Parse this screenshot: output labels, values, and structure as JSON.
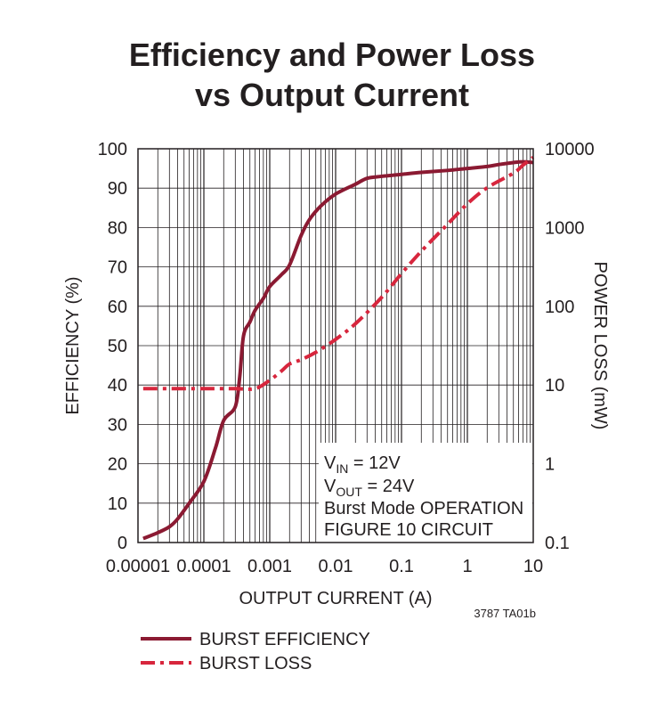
{
  "chart_data": {
    "type": "line",
    "title_line1": "Efficiency and Power Loss",
    "title_line2": "vs Output Current",
    "xlabel": "OUTPUT CURRENT (A)",
    "ylabel_left": "EFFICIENCY (%)",
    "ylabel_right": "POWER LOSS (mW)",
    "x_scale": "log",
    "xlim": [
      1e-05,
      10
    ],
    "ylim_left": [
      0,
      100
    ],
    "ylim_right": [
      0.1,
      10000
    ],
    "y_right_scale": "log",
    "x_ticks": [
      "0.00001",
      "0.0001",
      "0.001",
      "0.01",
      "0.1",
      "1",
      "10"
    ],
    "y_left_ticks": [
      "0",
      "10",
      "20",
      "30",
      "40",
      "50",
      "60",
      "70",
      "80",
      "90",
      "100"
    ],
    "y_right_ticks": [
      "0.1",
      "1",
      "10",
      "100",
      "1000",
      "10000"
    ],
    "grid": true,
    "annotation": {
      "vin_main": "V",
      "vin_sub": "IN",
      "vin_rest": " = 12V",
      "vout_main": "V",
      "vout_sub": "OUT",
      "vout_rest": " = 24V",
      "line3": "Burst Mode OPERATION",
      "line4": "FIGURE 10 CIRCUIT"
    },
    "figure_code": "3787 TA01b",
    "series": [
      {
        "name": "BURST EFFICIENCY",
        "axis": "left",
        "color": "#8b1a32",
        "style": "solid",
        "x": [
          1.2e-05,
          2e-05,
          3e-05,
          4e-05,
          6e-05,
          0.0001,
          0.00015,
          0.0002,
          0.0003,
          0.00035,
          0.0004,
          0.0005,
          0.0006,
          0.0008,
          0.001,
          0.0015,
          0.002,
          0.003,
          0.004,
          0.006,
          0.01,
          0.02,
          0.03,
          0.05,
          0.1,
          0.2,
          0.5,
          1,
          2,
          3,
          5,
          7,
          10
        ],
        "y": [
          1,
          2.5,
          4,
          6,
          10,
          15.5,
          24,
          31,
          34.5,
          42,
          52.5,
          56,
          59,
          62,
          65,
          68,
          70.5,
          78,
          82,
          85.5,
          88.5,
          91,
          92.5,
          93,
          93.5,
          94,
          94.5,
          95,
          95.5,
          96,
          96.5,
          96.7,
          96.5
        ]
      },
      {
        "name": "BURST LOSS",
        "axis": "right",
        "color": "#d7263d",
        "style": "dash-dot",
        "x": [
          1.2e-05,
          3e-05,
          0.0001,
          0.0003,
          0.0006,
          0.001,
          0.0015,
          0.002,
          0.003,
          0.005,
          0.01,
          0.02,
          0.05,
          0.1,
          0.2,
          0.5,
          1,
          2,
          5,
          7,
          10
        ],
        "y": [
          9,
          9,
          9,
          9,
          9,
          11.5,
          15,
          18.5,
          21,
          26,
          38,
          60,
          130,
          260,
          500,
          1100,
          2000,
          3200,
          4900,
          6200,
          7800
        ]
      }
    ]
  }
}
